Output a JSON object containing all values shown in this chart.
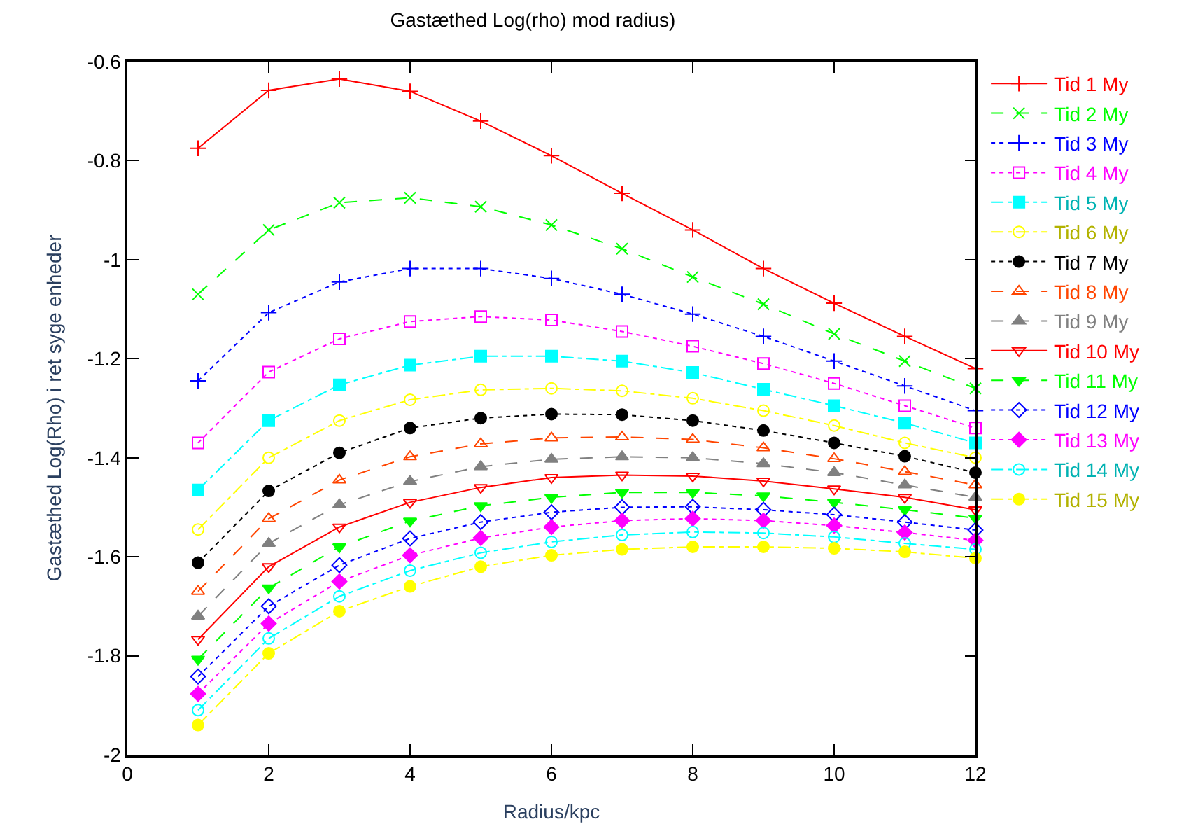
{
  "chart_data": {
    "type": "line",
    "title": "Gastæthed Log(rho) mod radius)",
    "xlabel": "Radius/kpc",
    "ylabel": "Gastæthed Log(Rho) i ret syge enheder",
    "x": [
      1,
      2,
      3,
      4,
      5,
      6,
      7,
      8,
      9,
      10,
      11,
      12
    ],
    "xlim": [
      0,
      12
    ],
    "xticks": [
      0,
      2,
      4,
      6,
      8,
      10,
      12
    ],
    "ylim": [
      -2,
      -0.6
    ],
    "yticks": [
      -2,
      -1.8,
      -1.6,
      -1.4,
      -1.2,
      -1,
      -0.8,
      -0.6
    ],
    "legend": "right",
    "series": [
      {
        "name": "Tid 1 My",
        "color": "#ff0000",
        "marker": "cross",
        "line_style": "solid",
        "values": [
          -0.775,
          -0.658,
          -0.635,
          -0.66,
          -0.72,
          -0.79,
          -0.866,
          -0.94,
          -1.018,
          -1.088,
          -1.155,
          -1.22
        ]
      },
      {
        "name": "Tid 2 My",
        "color": "#00ff00",
        "marker": "x",
        "line_style": "dashed",
        "values": [
          -1.07,
          -0.94,
          -0.885,
          -0.875,
          -0.893,
          -0.93,
          -0.978,
          -1.035,
          -1.09,
          -1.15,
          -1.205,
          -1.26
        ]
      },
      {
        "name": "Tid 3 My",
        "color": "#0000ff",
        "marker": "cross",
        "line_style": "dotted",
        "values": [
          -1.245,
          -1.107,
          -1.045,
          -1.018,
          -1.018,
          -1.038,
          -1.07,
          -1.11,
          -1.155,
          -1.205,
          -1.255,
          -1.305
        ]
      },
      {
        "name": "Tid 4 My",
        "color": "#ff00ff",
        "marker": "square-open",
        "line_style": "dotted",
        "values": [
          -1.37,
          -1.227,
          -1.16,
          -1.125,
          -1.115,
          -1.122,
          -1.145,
          -1.175,
          -1.21,
          -1.25,
          -1.295,
          -1.34
        ]
      },
      {
        "name": "Tid 5 My",
        "color": "#00ffff",
        "marker": "square",
        "line_style": "dashdot",
        "values": [
          -1.465,
          -1.325,
          -1.253,
          -1.213,
          -1.195,
          -1.195,
          -1.205,
          -1.228,
          -1.262,
          -1.295,
          -1.33,
          -1.37
        ]
      },
      {
        "name": "Tid 6 My",
        "color": "#ffff00",
        "marker": "circle-open",
        "line_style": "dashdot",
        "values": [
          -1.545,
          -1.4,
          -1.325,
          -1.283,
          -1.263,
          -1.26,
          -1.265,
          -1.28,
          -1.305,
          -1.335,
          -1.37,
          -1.4
        ]
      },
      {
        "name": "Tid 7 My",
        "color": "#000000",
        "marker": "circle",
        "line_style": "dotted",
        "values": [
          -1.612,
          -1.467,
          -1.39,
          -1.34,
          -1.32,
          -1.312,
          -1.313,
          -1.325,
          -1.345,
          -1.37,
          -1.397,
          -1.43
        ]
      },
      {
        "name": "Tid 8 My",
        "color": "#ff4500",
        "marker": "triangle-open",
        "line_style": "dashed",
        "values": [
          -1.67,
          -1.523,
          -1.445,
          -1.398,
          -1.372,
          -1.36,
          -1.358,
          -1.363,
          -1.38,
          -1.402,
          -1.428,
          -1.455
        ]
      },
      {
        "name": "Tid 9 My",
        "color": "#808080",
        "marker": "triangle",
        "line_style": "dashed",
        "values": [
          -1.72,
          -1.573,
          -1.495,
          -1.448,
          -1.418,
          -1.403,
          -1.398,
          -1.4,
          -1.412,
          -1.43,
          -1.455,
          -1.48
        ]
      },
      {
        "name": "Tid 10 My",
        "color": "#ff0000",
        "marker": "triangle-down-open",
        "line_style": "solid",
        "values": [
          -1.767,
          -1.62,
          -1.54,
          -1.49,
          -1.46,
          -1.44,
          -1.435,
          -1.437,
          -1.447,
          -1.463,
          -1.48,
          -1.505
        ]
      },
      {
        "name": "Tid 11 My",
        "color": "#00ff00",
        "marker": "triangle-down",
        "line_style": "dashed",
        "values": [
          -1.807,
          -1.663,
          -1.58,
          -1.528,
          -1.497,
          -1.48,
          -1.47,
          -1.47,
          -1.477,
          -1.49,
          -1.505,
          -1.522
        ]
      },
      {
        "name": "Tid 12 My",
        "color": "#0000ff",
        "marker": "diamond-open",
        "line_style": "dotted",
        "values": [
          -1.842,
          -1.7,
          -1.617,
          -1.563,
          -1.53,
          -1.51,
          -1.5,
          -1.499,
          -1.505,
          -1.515,
          -1.53,
          -1.546
        ]
      },
      {
        "name": "Tid 13 My",
        "color": "#ff00ff",
        "marker": "diamond",
        "line_style": "dotted",
        "values": [
          -1.877,
          -1.735,
          -1.65,
          -1.597,
          -1.562,
          -1.54,
          -1.527,
          -1.523,
          -1.527,
          -1.537,
          -1.551,
          -1.567
        ]
      },
      {
        "name": "Tid 14 My",
        "color": "#00ffff",
        "marker": "circle-open",
        "line_style": "dashdot",
        "values": [
          -1.91,
          -1.765,
          -1.68,
          -1.628,
          -1.592,
          -1.57,
          -1.556,
          -1.55,
          -1.552,
          -1.56,
          -1.573,
          -1.585
        ]
      },
      {
        "name": "Tid 15 My",
        "color": "#ffff00",
        "marker": "circle",
        "line_style": "dashdot",
        "values": [
          -1.94,
          -1.795,
          -1.71,
          -1.66,
          -1.62,
          -1.597,
          -1.585,
          -1.58,
          -1.58,
          -1.583,
          -1.59,
          -1.603
        ]
      }
    ]
  }
}
